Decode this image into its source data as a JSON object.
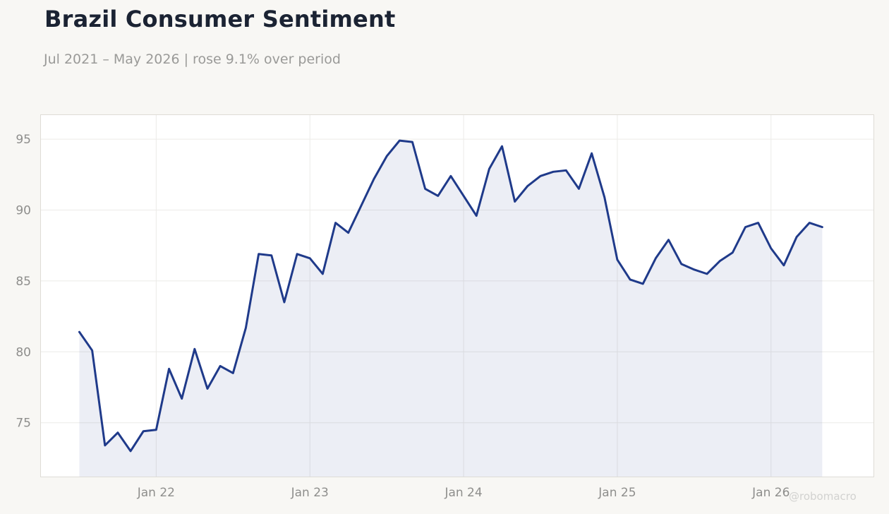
{
  "header": {
    "title": "Brazil Consumer Sentiment",
    "subtitle": "Jul 2021 – May 2026 | rose 9.1% over period"
  },
  "watermark": "@robomacro",
  "colors": {
    "line": "#1f3a8a",
    "area": "#e9eaf2",
    "background": "#f8f7f4",
    "plot_background": "#ffffff"
  },
  "chart_data": {
    "type": "area",
    "title": "Brazil Consumer Sentiment",
    "subtitle": "Jul 2021 – May 2026 | rose 9.1% over period",
    "xlabel": "",
    "ylabel": "",
    "x_ticks": [
      "Jan 22",
      "Jan 23",
      "Jan 24",
      "Jan 25",
      "Jan 26"
    ],
    "y_ticks": [
      75,
      80,
      85,
      90,
      95
    ],
    "ylim": [
      71.2,
      96.7
    ],
    "xlim": [
      "2021-04",
      "2026-09"
    ],
    "grid": true,
    "legend": "none",
    "series": [
      {
        "x": [
          "2021-07",
          "2021-08",
          "2021-09",
          "2021-10",
          "2021-11",
          "2021-12",
          "2022-01",
          "2022-02",
          "2022-03",
          "2022-04",
          "2022-05",
          "2022-06",
          "2022-07",
          "2022-08",
          "2022-09",
          "2022-10",
          "2022-11",
          "2022-12",
          "2023-01",
          "2023-02",
          "2023-03",
          "2023-04",
          "2023-05",
          "2023-06",
          "2023-07",
          "2023-08",
          "2023-09",
          "2023-10",
          "2023-11",
          "2023-12",
          "2024-01",
          "2024-02",
          "2024-03",
          "2024-04",
          "2024-05",
          "2024-06",
          "2024-07",
          "2024-08",
          "2024-09",
          "2024-10",
          "2024-11",
          "2024-12",
          "2025-01",
          "2025-02",
          "2025-03",
          "2025-04",
          "2025-05",
          "2025-06",
          "2025-07",
          "2025-08",
          "2025-09",
          "2025-10",
          "2025-11",
          "2025-12",
          "2026-01",
          "2026-02",
          "2026-03",
          "2026-04",
          "2026-05"
        ],
        "values": [
          81.4,
          80.1,
          73.4,
          74.3,
          73.0,
          74.4,
          74.5,
          78.8,
          76.7,
          80.2,
          77.4,
          79.0,
          78.5,
          81.7,
          86.9,
          86.8,
          83.5,
          86.9,
          86.6,
          85.5,
          89.1,
          88.4,
          90.3,
          92.2,
          93.8,
          94.9,
          94.8,
          91.5,
          91.0,
          92.4,
          91.0,
          89.6,
          92.9,
          94.5,
          90.6,
          91.7,
          92.4,
          92.7,
          92.8,
          91.5,
          94.0,
          90.9,
          86.5,
          85.1,
          84.8,
          86.6,
          87.9,
          86.2,
          85.8,
          85.5,
          86.4,
          87.0,
          88.8,
          89.1,
          87.3,
          86.1,
          88.1,
          89.1,
          88.8
        ]
      }
    ]
  }
}
